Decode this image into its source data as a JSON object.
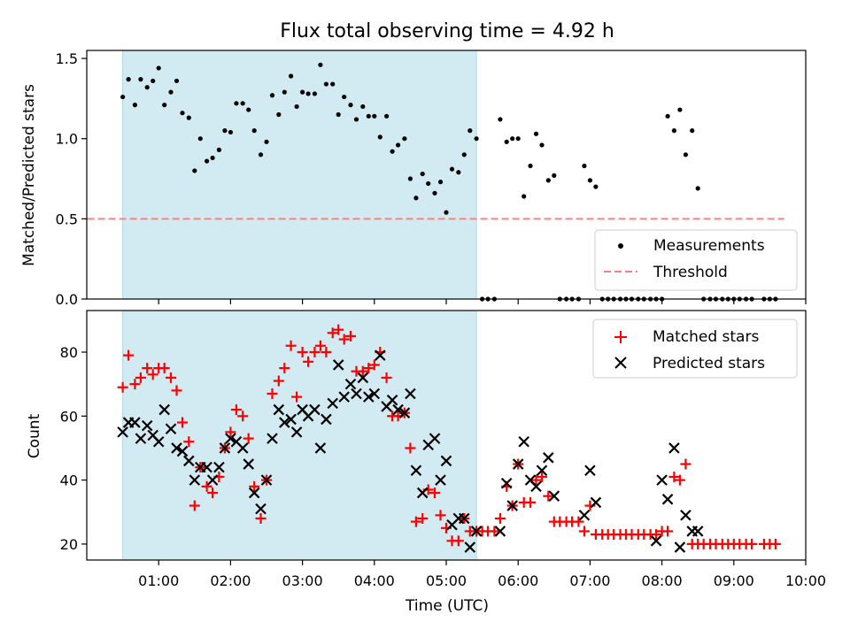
{
  "title": "Flux total observing time = 4.92 h",
  "colors": {
    "shade": "#add8e6",
    "measure": "#000000",
    "threshold": "#ff7f7f",
    "matched": "#ff0000",
    "predicted": "#000000"
  },
  "chart_data": [
    {
      "type": "scatter",
      "ylabel": "Matched/Predicted stars",
      "ylim": [
        0,
        1.55
      ],
      "yticks": [
        0.0,
        0.5,
        1.0,
        1.5
      ],
      "ytick_labels": [
        "0.0",
        "0.5",
        "1.0",
        "1.5"
      ],
      "xlim": [
        0.0,
        10.0
      ],
      "shaded_span": [
        0.5,
        5.42
      ],
      "threshold": 0.5,
      "legend": {
        "position": "lower-right",
        "entries": [
          "Measurements",
          "Threshold"
        ]
      },
      "series": [
        {
          "name": "Measurements",
          "x": [
            0.5,
            0.58,
            0.67,
            0.75,
            0.84,
            0.92,
            1.0,
            1.08,
            1.17,
            1.25,
            1.33,
            1.42,
            1.5,
            1.58,
            1.67,
            1.75,
            1.84,
            1.92,
            2.0,
            2.08,
            2.17,
            2.25,
            2.33,
            2.42,
            2.5,
            2.58,
            2.67,
            2.75,
            2.84,
            2.92,
            3.0,
            3.08,
            3.17,
            3.25,
            3.33,
            3.42,
            3.5,
            3.58,
            3.67,
            3.75,
            3.84,
            3.92,
            4.0,
            4.08,
            4.17,
            4.25,
            4.33,
            4.42,
            4.5,
            4.58,
            4.67,
            4.75,
            4.84,
            4.92,
            5.0,
            5.08,
            5.17,
            5.25,
            5.33,
            5.42,
            5.5,
            5.58,
            5.67,
            5.75,
            5.84,
            5.92,
            6.0,
            6.08,
            6.17,
            6.25,
            6.33,
            6.42,
            6.5,
            6.58,
            6.67,
            6.75,
            6.84,
            6.92,
            7.0,
            7.08,
            7.17,
            7.25,
            7.33,
            7.42,
            7.5,
            7.58,
            7.67,
            7.75,
            7.84,
            7.92,
            8.0,
            8.08,
            8.17,
            8.25,
            8.33,
            8.42,
            8.5,
            8.58,
            8.67,
            8.75,
            8.84,
            8.92,
            9.0,
            9.08,
            9.17,
            9.25,
            9.42,
            9.5,
            9.58
          ],
          "y": [
            1.26,
            1.37,
            1.21,
            1.37,
            1.32,
            1.36,
            1.44,
            1.21,
            1.29,
            1.36,
            1.16,
            1.13,
            0.8,
            1.0,
            0.86,
            0.88,
            0.93,
            1.05,
            1.04,
            1.22,
            1.22,
            1.18,
            1.05,
            0.9,
            0.98,
            1.27,
            1.15,
            1.29,
            1.39,
            1.2,
            1.29,
            1.28,
            1.28,
            1.46,
            1.34,
            1.34,
            1.15,
            1.26,
            1.21,
            1.12,
            1.2,
            1.14,
            1.14,
            1.01,
            1.14,
            0.92,
            0.96,
            1.0,
            0.75,
            0.63,
            0.78,
            0.72,
            0.66,
            0.73,
            0.54,
            0.81,
            0.79,
            0.9,
            1.05,
            1.0,
            0.0,
            0.0,
            0.0,
            1.12,
            0.98,
            1.0,
            1.0,
            0.64,
            0.83,
            1.03,
            0.96,
            0.74,
            0.77,
            0.0,
            0.0,
            0.0,
            0.0,
            0.83,
            0.74,
            0.7,
            0.0,
            0.0,
            0.0,
            0.0,
            0.0,
            0.0,
            0.0,
            0.0,
            0.0,
            0.0,
            0.0,
            1.14,
            1.05,
            1.18,
            0.9,
            1.05,
            0.69,
            0.0,
            0.0,
            0.0,
            0.0,
            0.0,
            0.0,
            0.0,
            0.0,
            0.0,
            0.0,
            0.0,
            0.0
          ]
        }
      ]
    },
    {
      "type": "scatter",
      "ylabel": "Count",
      "xlabel": "Time (UTC)",
      "ylim": [
        15,
        93
      ],
      "yticks": [
        20,
        40,
        60,
        80
      ],
      "ytick_labels": [
        "20",
        "40",
        "60",
        "80"
      ],
      "xlim": [
        0.0,
        10.0
      ],
      "xticks": [
        1,
        2,
        3,
        4,
        5,
        6,
        7,
        8,
        9,
        10
      ],
      "xtick_labels": [
        "01:00",
        "02:00",
        "03:00",
        "04:00",
        "05:00",
        "06:00",
        "07:00",
        "08:00",
        "09:00",
        "10:00"
      ],
      "shaded_span": [
        0.5,
        5.42
      ],
      "legend": {
        "position": "top-right",
        "entries": [
          "Matched stars",
          "Predicted stars"
        ]
      },
      "series": [
        {
          "name": "Matched stars",
          "x": [
            0.5,
            0.58,
            0.67,
            0.75,
            0.84,
            0.92,
            1.0,
            1.08,
            1.17,
            1.25,
            1.33,
            1.42,
            1.5,
            1.58,
            1.67,
            1.75,
            1.84,
            1.92,
            2.0,
            2.08,
            2.17,
            2.25,
            2.33,
            2.42,
            2.5,
            2.58,
            2.67,
            2.75,
            2.84,
            2.92,
            3.0,
            3.08,
            3.17,
            3.25,
            3.33,
            3.42,
            3.5,
            3.58,
            3.67,
            3.75,
            3.84,
            3.92,
            4.0,
            4.08,
            4.17,
            4.25,
            4.33,
            4.42,
            4.5,
            4.58,
            4.67,
            4.75,
            4.84,
            4.92,
            5.0,
            5.08,
            5.17,
            5.25,
            5.33,
            5.42,
            5.5,
            5.58,
            5.67,
            5.75,
            5.84,
            5.92,
            6.0,
            6.08,
            6.17,
            6.25,
            6.33,
            6.42,
            6.5,
            6.58,
            6.67,
            6.75,
            6.84,
            6.92,
            7.0,
            7.08,
            7.17,
            7.25,
            7.33,
            7.42,
            7.5,
            7.58,
            7.67,
            7.75,
            7.84,
            7.92,
            8.0,
            8.08,
            8.17,
            8.25,
            8.33,
            8.42,
            8.5,
            8.58,
            8.67,
            8.75,
            8.84,
            8.92,
            9.0,
            9.08,
            9.17,
            9.25,
            9.42,
            9.5,
            9.58
          ],
          "y": [
            69,
            79,
            70,
            72,
            75,
            73,
            75,
            75,
            72,
            68,
            58,
            52,
            32,
            44,
            38,
            36,
            41,
            50,
            55,
            62,
            60,
            53,
            38,
            28,
            40,
            67,
            71,
            75,
            82,
            66,
            80,
            77,
            80,
            82,
            80,
            86,
            87,
            84,
            85,
            74,
            74,
            75,
            76,
            80,
            72,
            60,
            60,
            61,
            50,
            27,
            28,
            37,
            36,
            29,
            25,
            21,
            21,
            28,
            24,
            24,
            24,
            24,
            24,
            28,
            38,
            32,
            45,
            33,
            33,
            40,
            41,
            35,
            27,
            27,
            27,
            27,
            27,
            24,
            32,
            23,
            23,
            23,
            23,
            23,
            23,
            23,
            23,
            23,
            23,
            23,
            24,
            24,
            41,
            40,
            45,
            20,
            20,
            20,
            20,
            20,
            20,
            20,
            20,
            20,
            20,
            20,
            20,
            20,
            20
          ]
        },
        {
          "name": "Predicted stars",
          "x": [
            0.5,
            0.58,
            0.67,
            0.75,
            0.84,
            0.92,
            1.0,
            1.08,
            1.17,
            1.25,
            1.33,
            1.42,
            1.5,
            1.58,
            1.67,
            1.75,
            1.84,
            1.92,
            2.0,
            2.08,
            2.17,
            2.25,
            2.33,
            2.42,
            2.5,
            2.58,
            2.67,
            2.75,
            2.84,
            2.92,
            3.0,
            3.08,
            3.17,
            3.25,
            3.33,
            3.42,
            3.5,
            3.58,
            3.67,
            3.75,
            3.84,
            3.92,
            4.0,
            4.08,
            4.17,
            4.25,
            4.33,
            4.42,
            4.5,
            4.58,
            4.67,
            4.75,
            4.84,
            4.92,
            5.0,
            5.08,
            5.17,
            5.25,
            5.33,
            5.42,
            5.75,
            5.84,
            5.92,
            6.0,
            6.08,
            6.17,
            6.25,
            6.33,
            6.42,
            6.5,
            6.92,
            7.0,
            7.08,
            7.92,
            8.0,
            8.08,
            8.17,
            8.25,
            8.33,
            8.42,
            8.5
          ],
          "y": [
            55,
            58,
            58,
            53,
            57,
            54,
            52,
            62,
            56,
            50,
            49,
            46,
            40,
            44,
            44,
            40,
            44,
            50,
            53,
            52,
            50,
            45,
            36,
            31,
            40,
            53,
            62,
            58,
            59,
            55,
            62,
            60,
            62,
            50,
            59,
            64,
            76,
            66,
            70,
            67,
            72,
            66,
            67,
            79,
            63,
            65,
            62,
            61,
            67,
            43,
            36,
            51,
            53,
            40,
            46,
            26,
            28,
            28,
            19,
            24,
            24,
            39,
            32,
            45,
            52,
            40,
            38,
            43,
            47,
            35,
            29,
            43,
            33,
            21,
            40,
            34,
            50,
            19,
            29,
            24,
            24
          ]
        }
      ]
    }
  ]
}
